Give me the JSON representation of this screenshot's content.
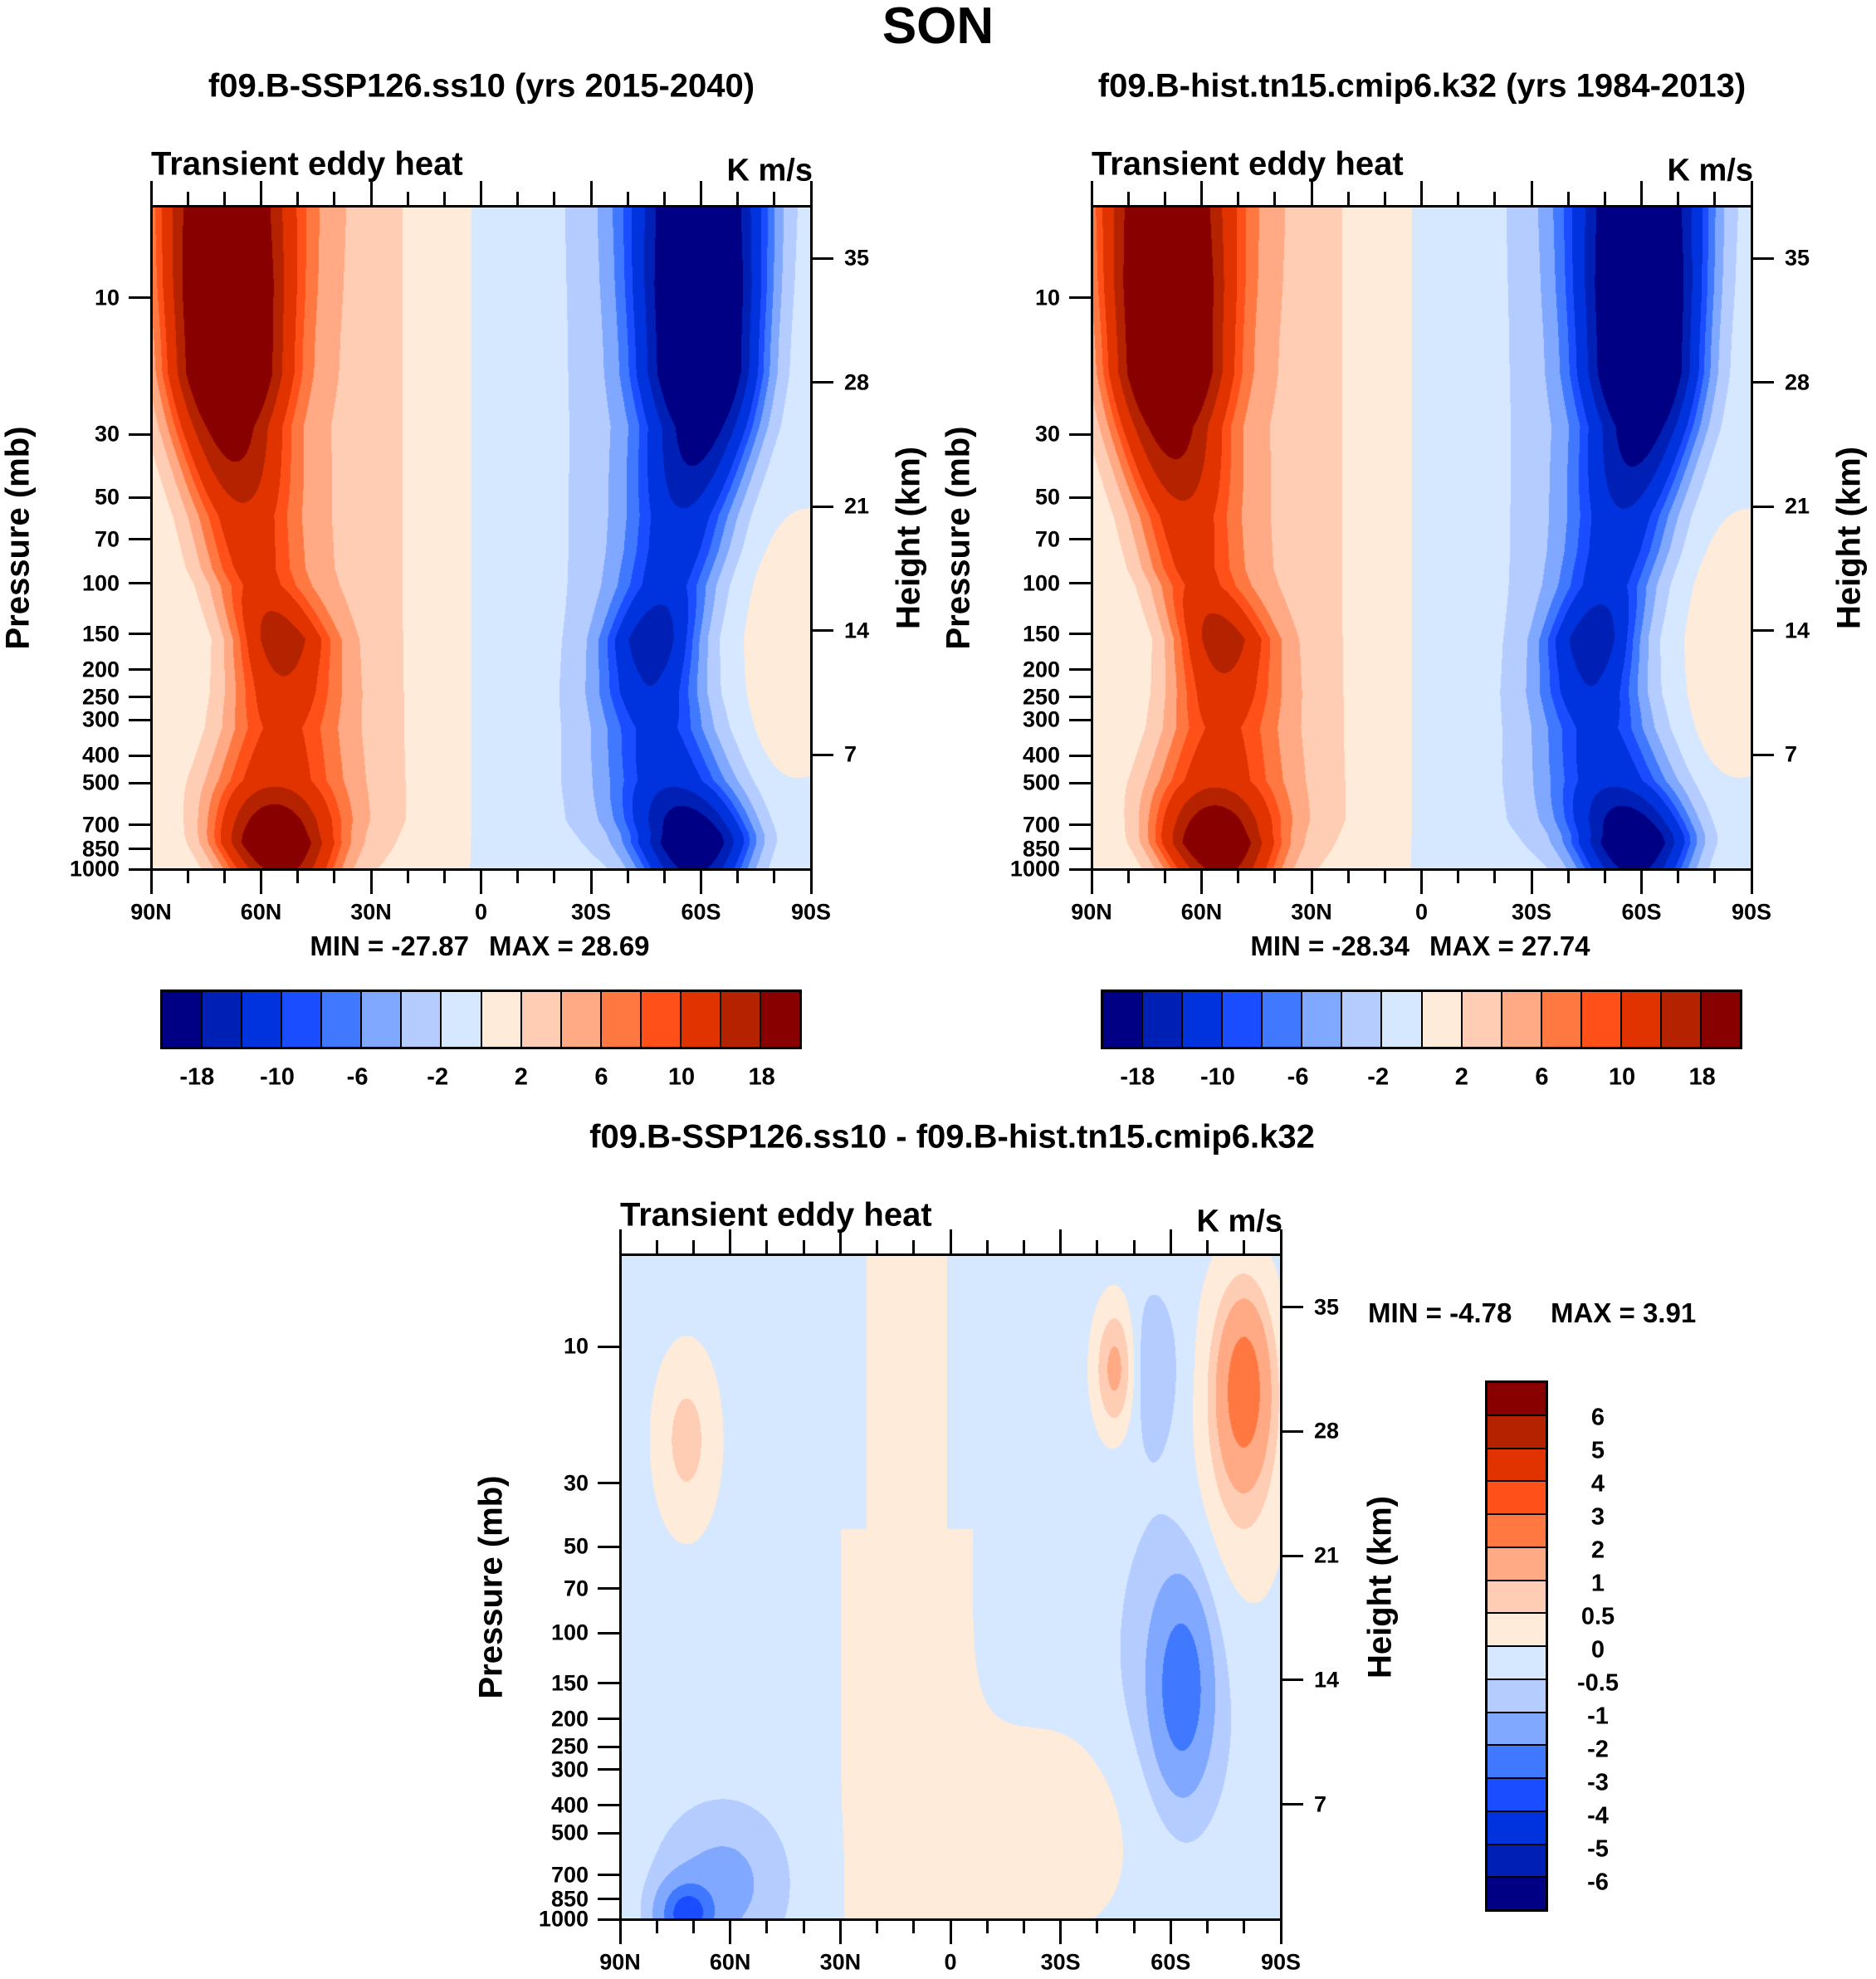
{
  "main_title": "SON",
  "chart_data": [
    {
      "type": "heatmap",
      "id": "p1",
      "title": "f09.B-SSP126.ss10 (yrs 2015-2040)",
      "left_string": "Transient eddy heat",
      "right_string": "K m/s",
      "ylabel": "Pressure (mb)",
      "ylabel_right": "Height (km)",
      "x_ticks": [
        "90N",
        "60N",
        "30N",
        "0",
        "30S",
        "60S",
        "90S"
      ],
      "x_tick_values": [
        90,
        60,
        30,
        0,
        -30,
        -60,
        -90
      ],
      "y_ticks": [
        10,
        30,
        50,
        70,
        100,
        150,
        200,
        250,
        300,
        400,
        500,
        700,
        850,
        1000
      ],
      "y_right_ticks": [
        35,
        28,
        21,
        14,
        7
      ],
      "min_label": "MIN = -27.87",
      "max_label": "MAX =  28.69",
      "min": -27.87,
      "max": 28.69,
      "colorbar_labels": [
        "-18",
        "-10",
        "-6",
        "-2",
        "2",
        "6",
        "10",
        "18"
      ],
      "colors": [
        "#000085",
        "#0020b5",
        "#0033dd",
        "#1a4dff",
        "#4078ff",
        "#80a8ff",
        "#b4ccff",
        "#d6e8ff",
        "#ffebd9",
        "#ffcdb4",
        "#ffaa85",
        "#ff7842",
        "#ff501a",
        "#e03300",
        "#b52200",
        "#880000"
      ]
    },
    {
      "type": "heatmap",
      "id": "p2",
      "title": "f09.B-hist.tn15.cmip6.k32 (yrs 1984-2013)",
      "left_string": "Transient eddy heat",
      "right_string": "K m/s",
      "ylabel": "Pressure (mb)",
      "ylabel_right": "Height (km)",
      "x_ticks": [
        "90N",
        "60N",
        "30N",
        "0",
        "30S",
        "60S",
        "90S"
      ],
      "x_tick_values": [
        90,
        60,
        30,
        0,
        -30,
        -60,
        -90
      ],
      "y_ticks": [
        10,
        30,
        50,
        70,
        100,
        150,
        200,
        250,
        300,
        400,
        500,
        700,
        850,
        1000
      ],
      "y_right_ticks": [
        35,
        28,
        21,
        14,
        7
      ],
      "min_label": "MIN = -28.34",
      "max_label": "MAX =  27.74",
      "min": -28.34,
      "max": 27.74,
      "colorbar_labels": [
        "-18",
        "-10",
        "-6",
        "-2",
        "2",
        "6",
        "10",
        "18"
      ],
      "colors": [
        "#000085",
        "#0020b5",
        "#0033dd",
        "#1a4dff",
        "#4078ff",
        "#80a8ff",
        "#b4ccff",
        "#d6e8ff",
        "#ffebd9",
        "#ffcdb4",
        "#ffaa85",
        "#ff7842",
        "#ff501a",
        "#e03300",
        "#b52200",
        "#880000"
      ]
    },
    {
      "type": "heatmap",
      "id": "p3",
      "title": "f09.B-SSP126.ss10 - f09.B-hist.tn15.cmip6.k32",
      "left_string": "Transient eddy heat",
      "right_string": "K m/s",
      "ylabel": "Pressure (mb)",
      "ylabel_right": "Height (km)",
      "x_ticks": [
        "90N",
        "60N",
        "30N",
        "0",
        "30S",
        "60S",
        "90S"
      ],
      "x_tick_values": [
        90,
        60,
        30,
        0,
        -30,
        -60,
        -90
      ],
      "y_ticks": [
        10,
        30,
        50,
        70,
        100,
        150,
        200,
        250,
        300,
        400,
        500,
        700,
        850,
        1000
      ],
      "y_right_ticks": [
        35,
        28,
        21,
        14,
        7
      ],
      "min_label": "MIN =  -4.78",
      "max_label": "MAX =   3.91",
      "min": -4.78,
      "max": 3.91,
      "colorbar_labels": [
        "6",
        "5",
        "4",
        "3",
        "2",
        "1",
        "0.5",
        "0",
        "-0.5",
        "-1",
        "-2",
        "-3",
        "-4",
        "-5",
        "-6"
      ],
      "levels": [
        -6,
        -5,
        -4,
        -3,
        -2,
        -1,
        -0.5,
        0,
        0.5,
        1,
        2,
        3,
        4,
        5,
        6
      ],
      "colors": [
        "#000085",
        "#0020b5",
        "#0033dd",
        "#1a4dff",
        "#4078ff",
        "#80a8ff",
        "#b4ccff",
        "#d6e8ff",
        "#ffebd9",
        "#ffcdb4",
        "#ffaa85",
        "#ff7842",
        "#ff501a",
        "#e03300",
        "#b52200",
        "#880000"
      ]
    }
  ]
}
